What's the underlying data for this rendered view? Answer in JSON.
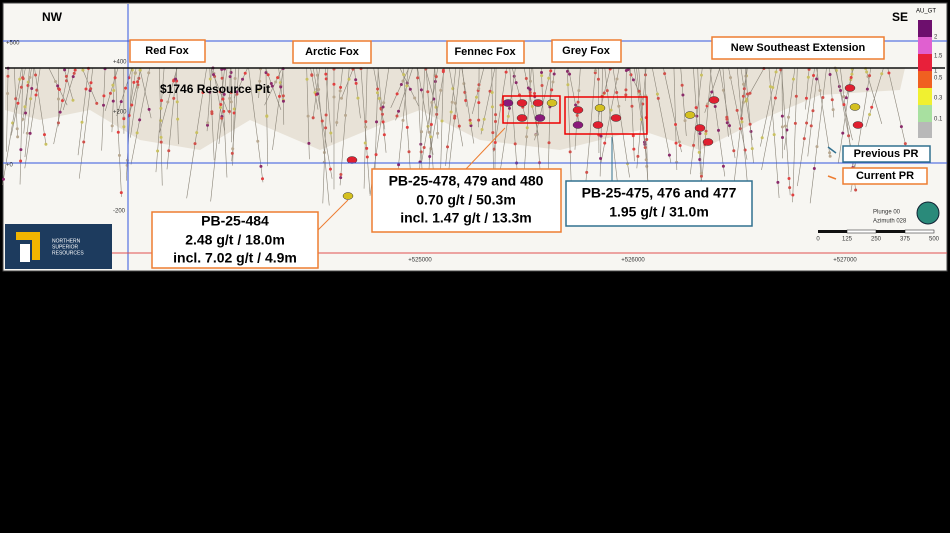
{
  "header": {
    "left": "NW",
    "right": "SE"
  },
  "zones": [
    "Red Fox",
    "Arctic Fox",
    "Fennec Fox",
    "Grey Fox",
    "New Southeast Extension"
  ],
  "pit_label": "$1746 Resource Pit",
  "callouts": [
    {
      "lines": [
        "PB-25-484",
        "2.48 g/t  / 18.0m",
        "incl. 7.02 g/t / 4.9m"
      ]
    },
    {
      "lines": [
        "PB-25-478, 479 and 480",
        "0.70 g/t / 50.3m",
        "incl. 1.47 g/t / 13.3m"
      ]
    },
    {
      "lines": [
        "PB-25-475, 476 and 477",
        "1.95 g/t / 31.0m"
      ]
    }
  ],
  "legend": [
    "Previous PR",
    "Current PR"
  ],
  "color_scale": {
    "title": "AU_GT",
    "labels": [
      "2",
      "1.5",
      "1",
      "0.5",
      "0.3",
      "0.1"
    ]
  },
  "elevation_labels": [
    "+500",
    "+400",
    "+200",
    "+0",
    "-200"
  ],
  "easting_labels": [
    "+525000",
    "+526000",
    "+527000"
  ],
  "view": {
    "plunge": "Plunge 00",
    "azimuth": "Azimuth 028"
  },
  "scale_bar": [
    "0",
    "125",
    "250",
    "375",
    "500"
  ],
  "logo": [
    "NORTHERN",
    "SUPERIOR",
    "RESOURCES"
  ]
}
